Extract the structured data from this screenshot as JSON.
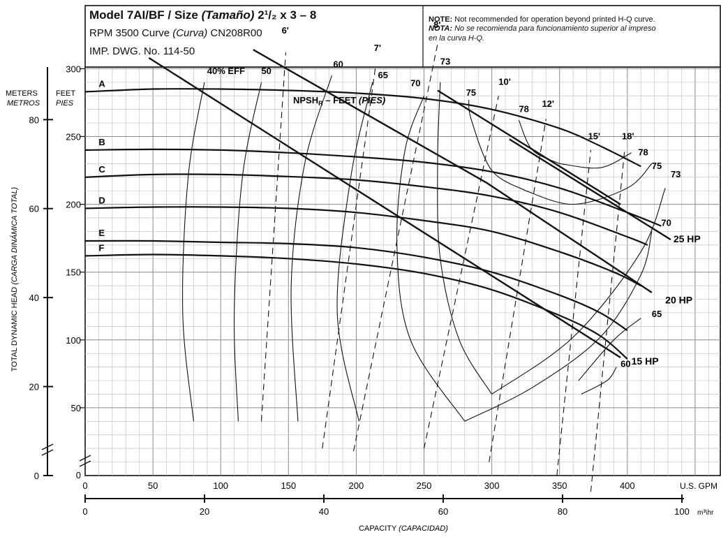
{
  "header": {
    "title_main": "Model 7AI/BF / Size ",
    "title_italic": "(Tamaño)",
    "title_size": " 2¹/₂ x 3 – 8",
    "rpm_line_a": "RPM 3500 Curve ",
    "rpm_line_italic": "(Curva)",
    "rpm_line_b": " CN208R00",
    "imp_line": "IMP. DWG. No. 114-50",
    "note_label": "NOTE:",
    "note_text": " Not recommended for operation beyond printed H-Q curve.",
    "nota_label": "NOTA:",
    "nota_text": " No se recomienda para funcionamiento superior al impreso",
    "nota_text_2": "en la curva H-Q."
  },
  "chart_data": {
    "type": "line",
    "x_axis": {
      "label": "U.S. GPM",
      "range": [
        0,
        460
      ],
      "ticks": [
        0,
        50,
        100,
        150,
        200,
        250,
        300,
        350,
        400
      ]
    },
    "x2_axis": {
      "label": "m³\\hr",
      "ticks": [
        0,
        20,
        40,
        60,
        80,
        100
      ]
    },
    "x_title_a": "CAPACITY ",
    "x_title_b": "(CAPACIDAD)",
    "y_axis": {
      "unit_label": "FEET",
      "unit_label_es": "PIES",
      "range_ft": [
        0,
        340
      ],
      "ticks": [
        50,
        100,
        150,
        200,
        250,
        300
      ]
    },
    "y2_axis": {
      "unit_label": "METERS",
      "unit_label_es": "METROS",
      "ticks": [
        0,
        20,
        40,
        60,
        80
      ]
    },
    "y_title_a": "TOTAL DYNAMIC HEAD ",
    "y_title_b": "(CARGA DINÁMICA TOTAL)",
    "head_curves": [
      {
        "name": "A",
        "points": [
          [
            0,
            283
          ],
          [
            50,
            285
          ],
          [
            100,
            285
          ],
          [
            150,
            284
          ],
          [
            200,
            282
          ],
          [
            250,
            278
          ],
          [
            300,
            270
          ],
          [
            350,
            256
          ],
          [
            380,
            243
          ],
          [
            410,
            228
          ]
        ]
      },
      {
        "name": "B",
        "points": [
          [
            0,
            240
          ],
          [
            50,
            240.5
          ],
          [
            100,
            240
          ],
          [
            150,
            238
          ],
          [
            200,
            235
          ],
          [
            250,
            231
          ],
          [
            300,
            224
          ],
          [
            350,
            212
          ],
          [
            400,
            194
          ],
          [
            425,
            184
          ]
        ]
      },
      {
        "name": "C",
        "points": [
          [
            0,
            220
          ],
          [
            50,
            222
          ],
          [
            100,
            222
          ],
          [
            150,
            220.5
          ],
          [
            200,
            218
          ],
          [
            250,
            213
          ],
          [
            300,
            206
          ],
          [
            350,
            194
          ],
          [
            400,
            176
          ],
          [
            415,
            170
          ]
        ]
      },
      {
        "name": "D",
        "points": [
          [
            0,
            197
          ],
          [
            50,
            198
          ],
          [
            100,
            198
          ],
          [
            150,
            197
          ],
          [
            200,
            194
          ],
          [
            250,
            188
          ],
          [
            300,
            180
          ],
          [
            350,
            165
          ],
          [
            390,
            150
          ],
          [
            410,
            140
          ]
        ]
      },
      {
        "name": "E",
        "points": [
          [
            0,
            173
          ],
          [
            50,
            173
          ],
          [
            100,
            172
          ],
          [
            150,
            171
          ],
          [
            200,
            168
          ],
          [
            250,
            161
          ],
          [
            300,
            150
          ],
          [
            350,
            133
          ],
          [
            380,
            120
          ],
          [
            400,
            107
          ]
        ]
      },
      {
        "name": "F",
        "points": [
          [
            0,
            162
          ],
          [
            50,
            163
          ],
          [
            100,
            162
          ],
          [
            150,
            160
          ],
          [
            200,
            156
          ],
          [
            250,
            149
          ],
          [
            300,
            137
          ],
          [
            350,
            118
          ],
          [
            380,
            103
          ],
          [
            400,
            86
          ]
        ]
      }
    ],
    "efficiency_curves": [
      {
        "name": "40% EFF",
        "label_at": [
          90,
          296
        ],
        "points": [
          [
            80,
            40
          ],
          [
            72,
            120
          ],
          [
            76,
            220
          ],
          [
            88,
            290
          ]
        ]
      },
      {
        "name": "50",
        "label_at": [
          130,
          296
        ],
        "points": [
          [
            113,
            40
          ],
          [
            110,
            120
          ],
          [
            116,
            220
          ],
          [
            130,
            290
          ]
        ]
      },
      {
        "name": "60",
        "label_at": [
          183,
          301
        ],
        "points": [
          [
            157,
            40
          ],
          [
            152,
            140
          ],
          [
            162,
            230
          ],
          [
            182,
            295
          ]
        ]
      },
      {
        "name": "65",
        "label_at": [
          216,
          293
        ],
        "points": [
          [
            202,
            40
          ],
          [
            186,
            120
          ],
          [
            196,
            220
          ],
          [
            212,
            290
          ]
        ]
      },
      {
        "name": "70",
        "label_at": [
          240,
          287
        ],
        "points": [
          [
            280,
            40
          ],
          [
            240,
            100
          ],
          [
            230,
            170
          ],
          [
            236,
            240
          ],
          [
            250,
            280
          ]
        ]
      },
      {
        "name": "73",
        "label_at": [
          262,
          303
        ],
        "points": [
          [
            300,
            60
          ],
          [
            276,
            100
          ],
          [
            262,
            160
          ],
          [
            260,
            230
          ],
          [
            262,
            290
          ]
        ]
      },
      {
        "name": "75",
        "label_at": [
          281,
          280
        ],
        "points": [
          [
            325,
            210
          ],
          [
            300,
            225
          ],
          [
            285,
            262
          ],
          [
            283,
            277
          ]
        ]
      },
      {
        "name": "78",
        "label_at": [
          320,
          268
        ],
        "points": [
          [
            350,
            230
          ],
          [
            330,
            240
          ],
          [
            320,
            262
          ]
        ]
      },
      {
        "name": "78",
        "label_at": [
          408,
          236
        ],
        "points": [
          [
            350,
            230
          ],
          [
            380,
            227
          ],
          [
            403,
            238
          ]
        ]
      },
      {
        "name": "75",
        "label_at": [
          418,
          226
        ],
        "points": [
          [
            325,
            210
          ],
          [
            360,
            200
          ],
          [
            400,
            212
          ],
          [
            418,
            230
          ]
        ]
      },
      {
        "name": "73",
        "label_at": [
          432,
          220
        ],
        "points": [
          [
            300,
            60
          ],
          [
            360,
            102
          ],
          [
            410,
            165
          ],
          [
            428,
            212
          ]
        ]
      },
      {
        "name": "70",
        "label_at": [
          425,
          184
        ],
        "points": [
          [
            280,
            40
          ],
          [
            330,
            65
          ],
          [
            380,
            102
          ],
          [
            410,
            148
          ],
          [
            418,
            180
          ]
        ]
      },
      {
        "name": "65",
        "label_at": [
          418,
          117
        ],
        "points": [
          [
            364,
            70
          ],
          [
            390,
            100
          ],
          [
            410,
            116
          ]
        ]
      },
      {
        "name": "60",
        "label_at": [
          395,
          80
        ],
        "points": [
          [
            366,
            60
          ],
          [
            385,
            70
          ],
          [
            392,
            80
          ]
        ]
      }
    ],
    "npsh_title_a": "NPSH",
    "npsh_title_sub": "R",
    "npsh_title_b": " – FEET ",
    "npsh_title_c": "(PIES)",
    "npsh_curves": [
      {
        "name": "6'",
        "label_at": [
          145,
          326
        ],
        "points": [
          [
            130,
            40
          ],
          [
            148,
            312
          ]
        ]
      },
      {
        "name": "7'",
        "label_at": [
          213,
          313
        ],
        "points": [
          [
            175,
            20
          ],
          [
            214,
            300
          ]
        ]
      },
      {
        "name": "8'",
        "label_at": [
          257,
          330
        ],
        "points": [
          [
            198,
            18
          ],
          [
            260,
            318
          ]
        ]
      },
      {
        "name": "10'",
        "label_at": [
          305,
          288
        ],
        "points": [
          [
            250,
            20
          ],
          [
            305,
            280
          ]
        ]
      },
      {
        "name": "12'",
        "label_at": [
          337,
          272
        ],
        "points": [
          [
            298,
            10
          ],
          [
            340,
            263
          ]
        ]
      },
      {
        "name": "15'",
        "label_at": [
          371,
          248
        ],
        "points": [
          [
            348,
            0
          ],
          [
            373,
            240
          ]
        ]
      },
      {
        "name": "18'",
        "label_at": [
          396,
          248
        ],
        "points": [
          [
            373,
            -12
          ],
          [
            398,
            240
          ]
        ]
      }
    ],
    "hp_lines": [
      {
        "name": "25 HP",
        "label_at": [
          434,
          172
        ],
        "points": [
          [
            313,
            248
          ],
          [
            432,
            174
          ]
        ]
      },
      {
        "name": "25 HP",
        "label_at": null,
        "points": [
          [
            260,
            284
          ],
          [
            395,
            200
          ]
        ]
      },
      {
        "name": "20 HP",
        "label_at": [
          428,
          127
        ],
        "points": [
          [
            124,
            314
          ],
          [
            296,
            216
          ],
          [
            418,
            135
          ]
        ]
      },
      {
        "name": "15 HP",
        "label_at": [
          403,
          82
        ],
        "points": [
          [
            47,
            308
          ],
          [
            395,
            87
          ]
        ]
      }
    ],
    "sys_labels": [
      "A",
      "B",
      "C",
      "D",
      "E",
      "F"
    ],
    "grid": true
  }
}
